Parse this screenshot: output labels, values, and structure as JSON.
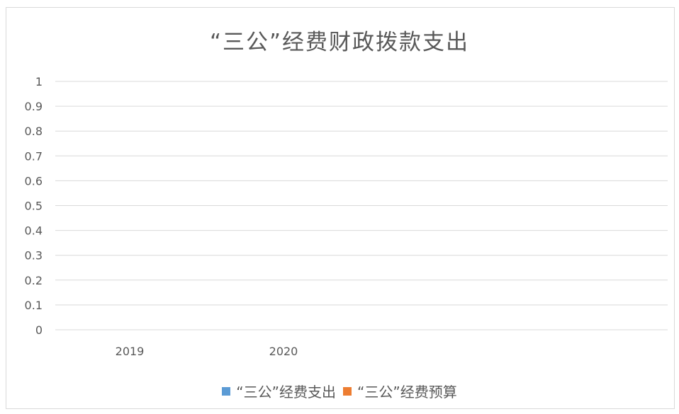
{
  "chart_data": {
    "type": "bar",
    "title": "“三公”经费财政拨款支出",
    "categories": [
      "2019",
      "2020"
    ],
    "series": [
      {
        "name": "“三公”经费支出",
        "values": [
          0,
          0
        ],
        "color": "#5b9bd5"
      },
      {
        "name": "“三公”经费预算",
        "values": [
          0,
          0
        ],
        "color": "#ed7d31"
      }
    ],
    "ylim": [
      0,
      1
    ],
    "yticks": [
      "0",
      "0.1",
      "0.2",
      "0.3",
      "0.4",
      "0.5",
      "0.6",
      "0.7",
      "0.8",
      "0.9",
      "1"
    ],
    "grid": true,
    "legend_position": "bottom"
  }
}
